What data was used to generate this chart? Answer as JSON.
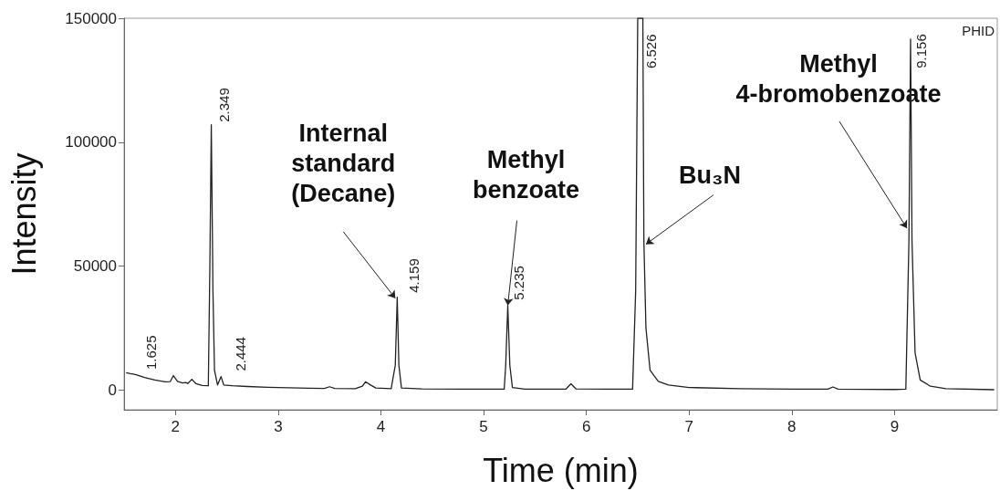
{
  "chart_data": {
    "type": "line",
    "xlabel": "Time (min)",
    "ylabel": "Intensity",
    "color": "#222222",
    "xlim": [
      1.5,
      10
    ],
    "ylim": [
      -8000,
      150000
    ],
    "xticks": [
      2,
      3,
      4,
      5,
      6,
      7,
      8,
      9
    ],
    "yticks": [
      0,
      50000,
      100000,
      150000
    ],
    "x": [
      1.52,
      1.56,
      1.6,
      1.625,
      1.7,
      1.8,
      1.9,
      1.95,
      1.98,
      2.02,
      2.07,
      2.1,
      2.12,
      2.16,
      2.2,
      2.26,
      2.32,
      2.335,
      2.349,
      2.365,
      2.38,
      2.41,
      2.444,
      2.47,
      2.55,
      2.7,
      2.9,
      3.1,
      3.3,
      3.45,
      3.5,
      3.55,
      3.75,
      3.82,
      3.85,
      3.9,
      3.95,
      4.1,
      4.14,
      4.159,
      4.175,
      4.2,
      4.4,
      4.8,
      5.2,
      5.215,
      5.235,
      5.255,
      5.28,
      5.4,
      5.8,
      5.85,
      5.9,
      6.2,
      6.45,
      6.48,
      6.5,
      6.55,
      6.56,
      6.58,
      6.62,
      6.7,
      6.8,
      7.0,
      7.5,
      8.0,
      8.35,
      8.4,
      8.45,
      9.0,
      9.11,
      9.14,
      9.156,
      9.17,
      9.2,
      9.25,
      9.35,
      9.5,
      9.97
    ],
    "values": [
      7000,
      6600,
      6300,
      6000,
      5000,
      4000,
      3300,
      3400,
      5800,
      3500,
      2800,
      3000,
      2600,
      4300,
      2500,
      1800,
      1700,
      50000,
      107000,
      40000,
      8000,
      2000,
      5400,
      2000,
      1700,
      1400,
      1100,
      900,
      700,
      600,
      1300,
      600,
      500,
      1500,
      3300,
      2000,
      800,
      500,
      10000,
      37400,
      10000,
      800,
      400,
      300,
      300,
      10000,
      34100,
      10000,
      1000,
      300,
      300,
      2500,
      400,
      300,
      300,
      40000,
      150000,
      150000,
      60000,
      25000,
      8000,
      3500,
      2000,
      1000,
      500,
      300,
      300,
      1200,
      300,
      200,
      300,
      60000,
      141600,
      60000,
      15000,
      4000,
      1500,
      500,
      100
    ],
    "annotations": [
      {
        "text": "1.625",
        "x": 1.625,
        "y": 6000
      },
      {
        "text": "2.349",
        "x": 2.349,
        "y": 107000
      },
      {
        "text": "2.444",
        "x": 2.444,
        "y": 5400
      },
      {
        "text": "4.159",
        "x": 4.159,
        "y": 37400
      },
      {
        "text": "5.235",
        "x": 5.235,
        "y": 34100
      },
      {
        "text": "6.526",
        "x": 6.526,
        "y": 150000
      },
      {
        "text": "9.156",
        "x": 9.156,
        "y": 141600
      },
      {
        "text": "Internal\nstandard\n(Decane)",
        "x": 4.14,
        "y": 37000
      },
      {
        "text": "Methyl\nbenzoate",
        "x": 5.235,
        "y": 34100
      },
      {
        "text": "Bu₃N",
        "x": 6.58,
        "y": 58800
      },
      {
        "text": "Methyl\n4-bromobenzoate",
        "x": 9.12,
        "y": 65300
      },
      "PHID"
    ]
  }
}
